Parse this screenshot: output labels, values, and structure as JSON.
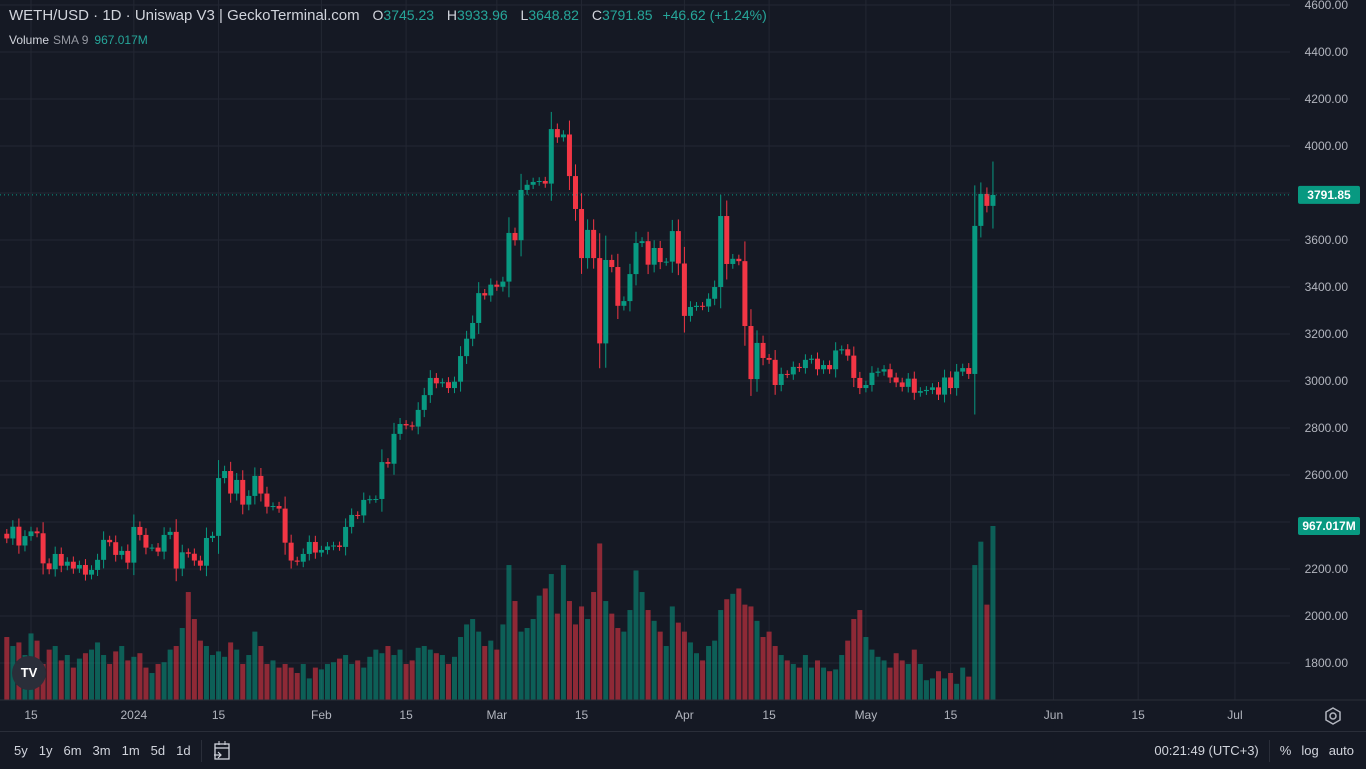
{
  "header": {
    "title": "WETH/USD · 1D · Uniswap V3 | GeckoTerminal.com",
    "o_label": "O",
    "open": "3745.23",
    "h_label": "H",
    "high": "3933.96",
    "l_label": "L",
    "low": "3648.82",
    "c_label": "C",
    "close": "3791.85",
    "change": "+46.62 (+1.24%)"
  },
  "volume_indicator": {
    "name": "Volume",
    "sma": "SMA 9",
    "value": "967.017M"
  },
  "price_tag": "3791.85",
  "volume_tag": "967.017M",
  "colors": {
    "up": "#089981",
    "down": "#f23645",
    "background": "#151924",
    "grid": "#232733"
  },
  "bottom_bar": {
    "ranges": [
      "5y",
      "1y",
      "6m",
      "3m",
      "1m",
      "5d",
      "1d"
    ],
    "clock": "00:21:49 (UTC+3)",
    "percent": "%",
    "log": "log",
    "auto": "auto"
  },
  "logo_text": "TV",
  "chart_data": {
    "type": "candlestick",
    "title": "WETH/USD · 1D · Uniswap V3",
    "ylim": [
      1650,
      4620
    ],
    "y_ticks": [
      "1800.00",
      "2000.00",
      "2200.00",
      "2400.00",
      "2600.00",
      "2800.00",
      "3000.00",
      "3200.00",
      "3400.00",
      "3600.00",
      "4000.00",
      "4200.00",
      "4400.00",
      "4600.00"
    ],
    "x_ticks": [
      {
        "label": "15",
        "day": 0
      },
      {
        "label": "2024",
        "day": 17
      },
      {
        "label": "15",
        "day": 31
      },
      {
        "label": "Feb",
        "day": 48
      },
      {
        "label": "15",
        "day": 62
      },
      {
        "label": "Mar",
        "day": 77
      },
      {
        "label": "15",
        "day": 91
      },
      {
        "label": "Apr",
        "day": 108
      },
      {
        "label": "15",
        "day": 122
      },
      {
        "label": "May",
        "day": 138
      },
      {
        "label": "15",
        "day": 152
      },
      {
        "label": "Jun",
        "day": 169
      },
      {
        "label": "15",
        "day": 183
      },
      {
        "label": "Jul",
        "day": 199
      }
    ],
    "x_unit": "days since Dec 15, 2023",
    "first_candle_day": -4,
    "first_open": 2350,
    "close": [
      2330,
      2380,
      2300,
      2340,
      2360,
      2352,
      2224,
      2199,
      2264,
      2214,
      2231,
      2202,
      2217,
      2176,
      2196,
      2239,
      2324,
      2314,
      2260,
      2277,
      2227,
      2379,
      2345,
      2291,
      2291,
      2274,
      2345,
      2358,
      2202,
      2271,
      2265,
      2236,
      2214,
      2332,
      2341,
      2587,
      2617,
      2521,
      2579,
      2474,
      2511,
      2596,
      2521,
      2465,
      2468,
      2457,
      2312,
      2236,
      2231,
      2264,
      2315,
      2270,
      2281,
      2296,
      2300,
      2294,
      2379,
      2430,
      2428,
      2494,
      2497,
      2498,
      2655,
      2648,
      2775,
      2817,
      2811,
      2806,
      2877,
      2940,
      3013,
      2990,
      2995,
      2970,
      2997,
      3106,
      3180,
      3247,
      3374,
      3364,
      3410,
      3401,
      3423,
      3630,
      3599,
      3813,
      3835,
      3847,
      3851,
      3840,
      4072,
      4037,
      4049,
      3872,
      3732,
      3523,
      3643,
      3523,
      3160,
      3515,
      3485,
      3320,
      3340,
      3455,
      3587,
      3595,
      3495,
      3566,
      3506,
      3508,
      3638,
      3500,
      3277,
      3315,
      3320,
      3317,
      3350,
      3400,
      3702,
      3498,
      3520,
      3510,
      3234,
      3008,
      3162,
      3098,
      3090,
      2983,
      3030,
      3028,
      3060,
      3055,
      3090,
      3095,
      3050,
      3068,
      3050,
      3130,
      3135,
      3108,
      3013,
      2970,
      2983,
      3035,
      3040,
      3050,
      3015,
      2994,
      2975,
      3010,
      2950,
      2957,
      2962,
      2973,
      2942,
      3015,
      2970,
      3040,
      3055,
      3030,
      3660,
      3796,
      3745.23,
      3791.85
    ],
    "last_candle": {
      "open": 3745.23,
      "high": 3933.96,
      "low": 3648.82,
      "close": 3791.85
    },
    "volume_millions": [
      350,
      300,
      320,
      250,
      370,
      330,
      200,
      280,
      300,
      220,
      250,
      180,
      230,
      260,
      280,
      320,
      250,
      200,
      270,
      300,
      220,
      240,
      260,
      180,
      150,
      200,
      210,
      280,
      300,
      400,
      600,
      450,
      330,
      300,
      250,
      270,
      240,
      320,
      280,
      200,
      250,
      380,
      300,
      200,
      220,
      180,
      200,
      180,
      150,
      200,
      120,
      180,
      170,
      200,
      210,
      230,
      250,
      200,
      220,
      180,
      240,
      280,
      260,
      300,
      250,
      280,
      200,
      220,
      290,
      300,
      280,
      260,
      250,
      200,
      240,
      350,
      420,
      450,
      380,
      300,
      330,
      280,
      420,
      750,
      550,
      380,
      400,
      450,
      580,
      620,
      700,
      480,
      750,
      550,
      420,
      520,
      450,
      600,
      870,
      550,
      480,
      400,
      380,
      500,
      720,
      600,
      500,
      440,
      380,
      300,
      520,
      430,
      380,
      320,
      260,
      220,
      300,
      330,
      500,
      560,
      590,
      620,
      530,
      520,
      440,
      350,
      380,
      300,
      250,
      220,
      200,
      180,
      250,
      180,
      220,
      180,
      160,
      170,
      250,
      330,
      450,
      500,
      350,
      280,
      240,
      220,
      180,
      260,
      220,
      200,
      280,
      200,
      110,
      120,
      160,
      120,
      150,
      90,
      180,
      130,
      750,
      880,
      530,
      967.017
    ]
  }
}
